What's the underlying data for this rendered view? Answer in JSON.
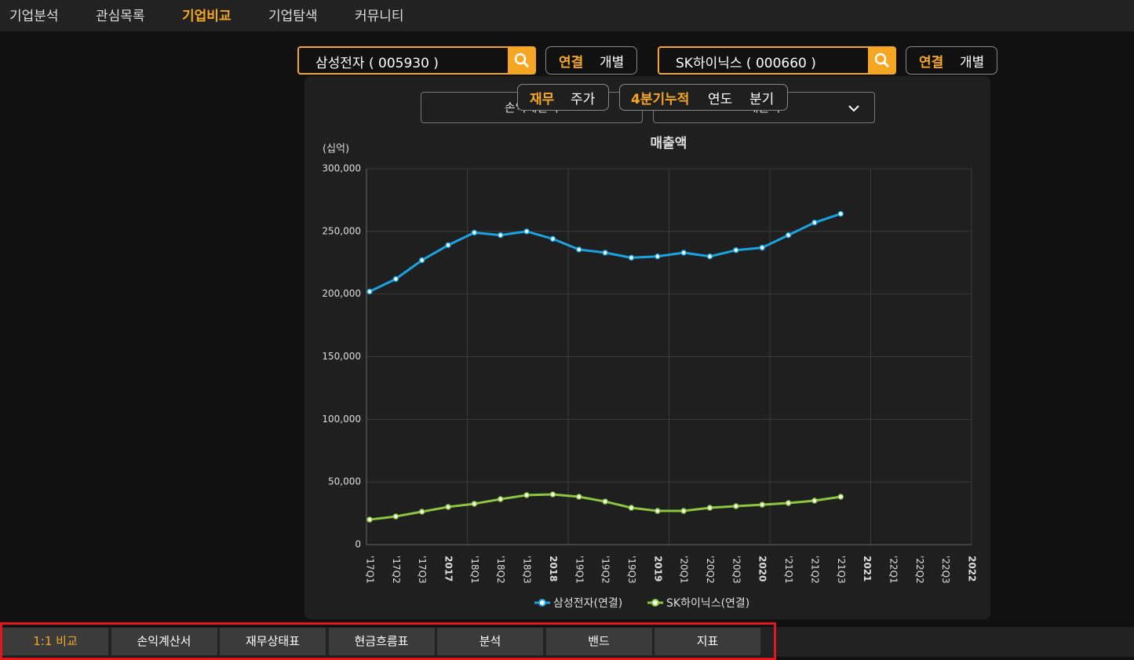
{
  "nav": [
    "기업분석",
    "관심목록",
    "기업비교",
    "기업탐색",
    "커뮤니티"
  ],
  "company_a": {
    "name": "삼성전자 ( 005930 )",
    "options": [
      "연결",
      "개별"
    ]
  },
  "company_b": {
    "name": "SK하이닉스 ( 000660 )",
    "options": [
      "연결",
      "개별"
    ]
  },
  "selects": [
    "손익계산서",
    "매출액"
  ],
  "popup_a": [
    "재무",
    "주가"
  ],
  "popup_b": [
    "4분기누적",
    "연도",
    "분기"
  ],
  "tabs": [
    "1:1 비교",
    "손익계산서",
    "재무상태표",
    "현금흐름표",
    "분석",
    "밴드",
    "지표"
  ],
  "chart_data": {
    "type": "line",
    "title": "매출액",
    "y_label": "(십억)",
    "categories": [
      "'17Q1",
      "'17Q2",
      "'17Q3",
      "2017",
      "'18Q1",
      "'18Q2",
      "'18Q3",
      "2018",
      "'19Q1",
      "'19Q2",
      "'19Q3",
      "2019",
      "'20Q1",
      "'20Q2",
      "'20Q3",
      "2020",
      "'21Q1",
      "'21Q2",
      "'21Q3",
      "2021",
      "'22Q1",
      "'22Q2",
      "'22Q3",
      "2022"
    ],
    "series": [
      {
        "name": "삼성전자(연결)",
        "color": "#1aa3e0",
        "values": [
          202000,
          212000,
          227000,
          239000,
          249000,
          247000,
          250000,
          244000,
          235500,
          233000,
          229000,
          230000,
          233000,
          230000,
          235000,
          237000,
          247000,
          257000,
          264000,
          null,
          null,
          null,
          null,
          null
        ]
      },
      {
        "name": "SK하이닉스(연결)",
        "color": "#8cc63f",
        "values": [
          20000,
          22500,
          26300,
          30100,
          32600,
          36300,
          39500,
          40100,
          38200,
          34400,
          29400,
          26900,
          26900,
          29400,
          30700,
          31900,
          33200,
          35100,
          38200,
          null,
          null,
          null,
          null,
          null
        ]
      }
    ],
    "ylim": [
      0,
      300000
    ],
    "yticks": [
      0,
      {
        "value": 50000,
        "label": "50,000"
      },
      {
        "value": 100000,
        "label": "100,000"
      },
      {
        "value": 150000,
        "label": "150,000"
      },
      {
        "value": 200000,
        "label": "200,000"
      },
      {
        "value": 250000,
        "label": "250,000"
      },
      {
        "value": 300000,
        "label": "300,000"
      }
    ],
    "grid": true
  }
}
